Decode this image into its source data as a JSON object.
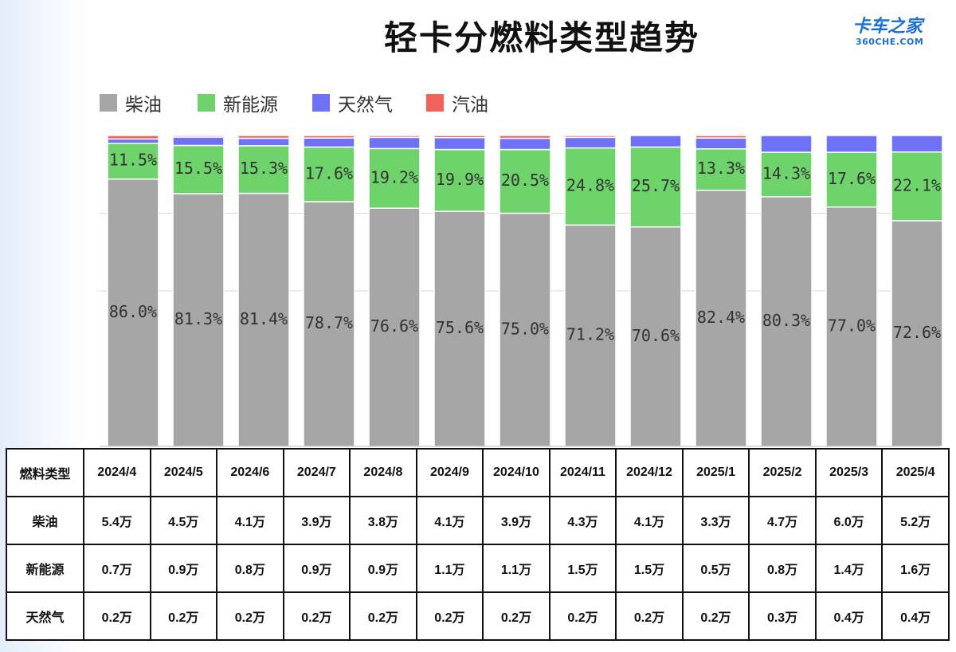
{
  "title": "轻卡分燃料类型趋势",
  "logo": {
    "main": "卡车之家",
    "sub": "360CHE.COM"
  },
  "colors": {
    "diesel": "#a6a6a6",
    "ev": "#6ed36b",
    "gas": "#6f72f6",
    "petrol": "#f0625a"
  },
  "chart_data": {
    "type": "bar",
    "stacked": true,
    "percent_stacked": true,
    "title": "轻卡分燃料类型趋势",
    "legend_position": "top-left",
    "grid": true,
    "categories": [
      "2024/4",
      "2024/5",
      "2024/6",
      "2024/7",
      "2024/8",
      "2024/9",
      "2024/10",
      "2024/11",
      "2024/12",
      "2025/1",
      "2025/2",
      "2025/3",
      "2025/4"
    ],
    "series": [
      {
        "name": "柴油",
        "color": "#a6a6a6",
        "values": [
          86.0,
          81.3,
          81.4,
          78.7,
          76.6,
          75.6,
          75.0,
          71.2,
          70.6,
          82.4,
          80.3,
          77.0,
          72.6
        ],
        "labels": [
          "86.0%",
          "81.3%",
          "81.4%",
          "78.7%",
          "76.6%",
          "75.6%",
          "75.0%",
          "71.2%",
          "70.6%",
          "82.4%",
          "80.3%",
          "77.0%",
          "72.6%"
        ]
      },
      {
        "name": "新能源",
        "color": "#6ed36b",
        "values": [
          11.5,
          15.5,
          15.3,
          17.6,
          19.2,
          19.9,
          20.5,
          24.8,
          25.7,
          13.3,
          14.3,
          17.6,
          22.1
        ],
        "labels": [
          "11.5%",
          "15.5%",
          "15.3%",
          "17.6%",
          "19.2%",
          "19.9%",
          "20.5%",
          "24.8%",
          "25.7%",
          "13.3%",
          "14.3%",
          "17.6%",
          "22.1%"
        ]
      },
      {
        "name": "天然气",
        "color": "#6f72f6",
        "values": [
          1.4,
          2.7,
          2.4,
          2.9,
          3.6,
          3.8,
          3.6,
          3.4,
          3.7,
          3.5,
          5.4,
          5.4,
          5.3
        ]
      },
      {
        "name": "汽油",
        "color": "#f0625a",
        "values": [
          1.1,
          0.5,
          0.9,
          0.8,
          0.6,
          0.7,
          0.9,
          0.6,
          0.0,
          0.8,
          0.0,
          0.0,
          0.0
        ]
      }
    ],
    "ylim": [
      0,
      100
    ]
  },
  "table": {
    "header": [
      "燃料类型",
      "2024/4",
      "2024/5",
      "2024/6",
      "2024/7",
      "2024/8",
      "2024/9",
      "2024/10",
      "2024/11",
      "2024/12",
      "2025/1",
      "2025/2",
      "2025/3",
      "2025/4"
    ],
    "rows": [
      [
        "柴油",
        "5.4万",
        "4.5万",
        "4.1万",
        "3.9万",
        "3.8万",
        "4.1万",
        "3.9万",
        "4.3万",
        "4.1万",
        "3.3万",
        "4.7万",
        "6.0万",
        "5.2万"
      ],
      [
        "新能源",
        "0.7万",
        "0.9万",
        "0.8万",
        "0.9万",
        "0.9万",
        "1.1万",
        "1.1万",
        "1.5万",
        "1.5万",
        "0.5万",
        "0.8万",
        "1.4万",
        "1.6万"
      ],
      [
        "天然气",
        "0.2万",
        "0.2万",
        "0.2万",
        "0.2万",
        "0.2万",
        "0.2万",
        "0.2万",
        "0.2万",
        "0.2万",
        "0.2万",
        "0.3万",
        "0.4万",
        "0.4万"
      ]
    ]
  }
}
